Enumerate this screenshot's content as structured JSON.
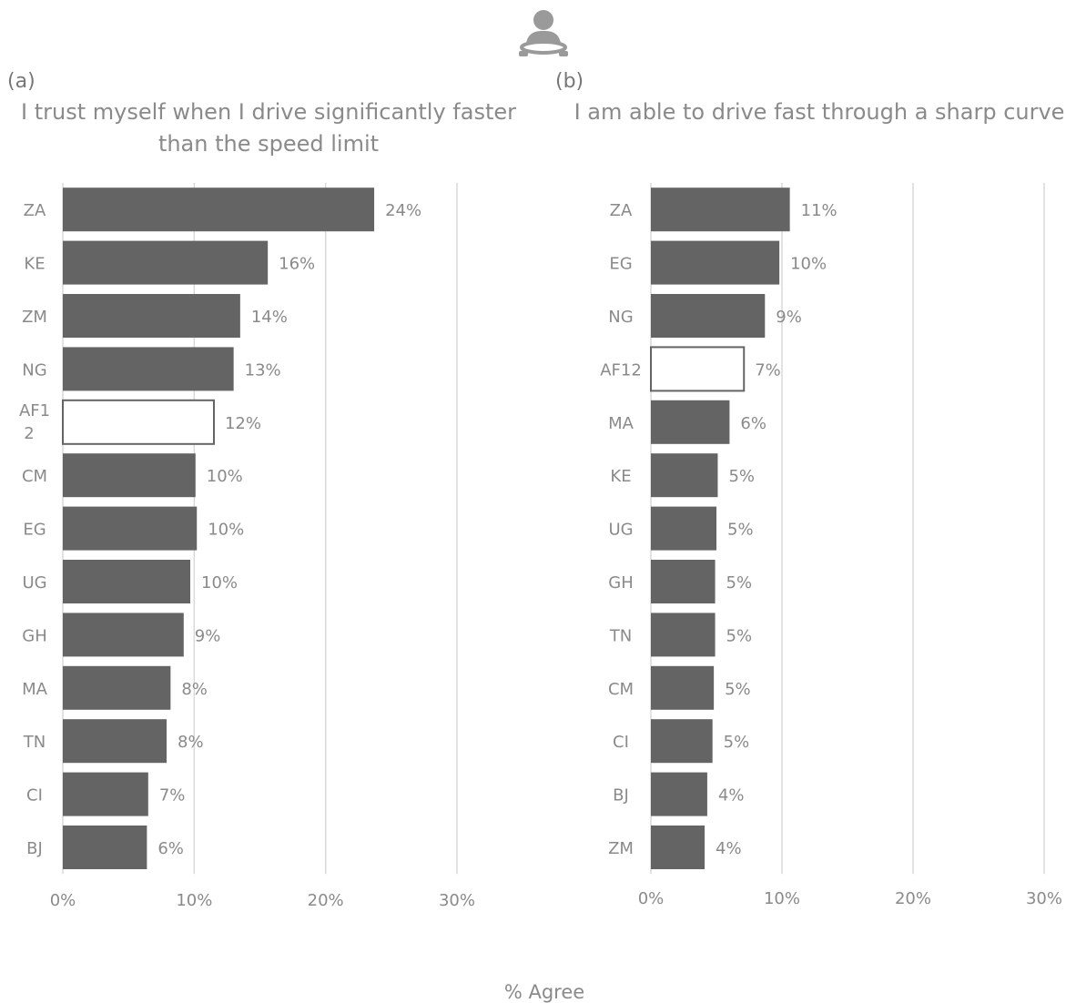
{
  "icon": "driver-steering-wheel-icon",
  "colors": {
    "bar": "#646464",
    "highlight_fill": "#ffffff",
    "highlight_stroke": "#646464",
    "grid": "#d9d9d9",
    "text": "#8a8a8a"
  },
  "x_axis_title": "% Agree",
  "chart_data": [
    {
      "type": "bar",
      "orientation": "horizontal",
      "panel_label": "(a)",
      "title_lines": [
        "I trust myself when I drive significantly faster",
        "than the speed limit"
      ],
      "categories": [
        "ZA",
        "KE",
        "ZM",
        "NG",
        "AF1\n2",
        "CM",
        "EG",
        "UG",
        "GH",
        "MA",
        "TN",
        "CI",
        "BJ"
      ],
      "values": [
        24,
        16,
        14,
        13,
        12,
        10,
        10,
        10,
        9,
        8,
        8,
        7,
        6
      ],
      "bar_lengths": [
        23.7,
        15.6,
        13.5,
        13.0,
        11.5,
        10.1,
        10.2,
        9.7,
        9.2,
        8.2,
        7.9,
        6.5,
        6.4
      ],
      "labels": [
        "24%",
        "16%",
        "14%",
        "13%",
        "12%",
        "10%",
        "10%",
        "10%",
        "9%",
        "8%",
        "8%",
        "7%",
        "6%"
      ],
      "highlight": "AF1\n2",
      "xlim": [
        0,
        30
      ],
      "xticks": [
        "0%",
        "10%",
        "20%",
        "30%"
      ],
      "grid": true
    },
    {
      "type": "bar",
      "orientation": "horizontal",
      "panel_label": "(b)",
      "title_lines": [
        "I am able to drive fast through a sharp curve"
      ],
      "categories": [
        "ZA",
        "EG",
        "NG",
        "AF12",
        "MA",
        "KE",
        "UG",
        "GH",
        "TN",
        "CM",
        "CI",
        "BJ",
        "ZM"
      ],
      "values": [
        11,
        10,
        9,
        7,
        6,
        5,
        5,
        5,
        5,
        5,
        5,
        4,
        4
      ],
      "bar_lengths": [
        10.6,
        9.8,
        8.7,
        7.1,
        6.0,
        5.1,
        5.0,
        4.9,
        4.9,
        4.8,
        4.7,
        4.3,
        4.1
      ],
      "labels": [
        "11%",
        "10%",
        "9%",
        "7%",
        "6%",
        "5%",
        "5%",
        "5%",
        "5%",
        "5%",
        "5%",
        "4%",
        "4%"
      ],
      "highlight": "AF12",
      "xlim": [
        0,
        30
      ],
      "xticks": [
        "0%",
        "10%",
        "20%",
        "30%"
      ],
      "grid": true
    }
  ]
}
